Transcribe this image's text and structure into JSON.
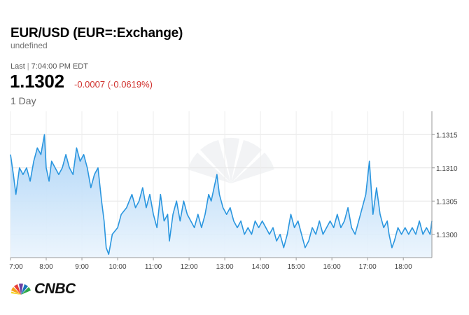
{
  "header": {
    "title": "EUR/USD (EUR=:Exchange)",
    "subtitle": "undefined",
    "last_label": "Last",
    "last_time": "7:04:00 PM EDT",
    "price": "1.1302",
    "change": "-0.0007 (-0.0619%)",
    "range": "1 Day"
  },
  "brand": {
    "name": "CNBC",
    "logo_icon": "cnbc-peacock-icon"
  },
  "colors": {
    "line": "#2a96df",
    "fill_top": "#a9d2f6",
    "fill_bottom": "#eaf4fd",
    "negative": "#d0312d"
  },
  "chart_data": {
    "type": "area",
    "x_tick_labels": [
      "7:00",
      "8:00",
      "9:00",
      "10:00",
      "11:00",
      "12:00",
      "13:00",
      "14:00",
      "15:00",
      "16:00",
      "17:00",
      "18:00"
    ],
    "x_range_hours": [
      7.0,
      18.8
    ],
    "ylim": [
      1.12965,
      1.13185
    ],
    "y_tick_labels": [
      "1.1315",
      "1.1310",
      "1.1305",
      "1.1300"
    ],
    "y_ticks": [
      1.1315,
      1.131,
      1.1305,
      1.13
    ],
    "grid": true,
    "y_axis_position": "right",
    "series": [
      {
        "points": [
          [
            7.0,
            1.1312
          ],
          [
            7.08,
            1.1309
          ],
          [
            7.15,
            1.1306
          ],
          [
            7.25,
            1.131
          ],
          [
            7.35,
            1.1309
          ],
          [
            7.45,
            1.131
          ],
          [
            7.55,
            1.1308
          ],
          [
            7.65,
            1.1311
          ],
          [
            7.75,
            1.1313
          ],
          [
            7.85,
            1.1312
          ],
          [
            7.95,
            1.1315
          ],
          [
            8.0,
            1.131
          ],
          [
            8.08,
            1.1308
          ],
          [
            8.15,
            1.1311
          ],
          [
            8.25,
            1.131
          ],
          [
            8.35,
            1.1309
          ],
          [
            8.45,
            1.131
          ],
          [
            8.55,
            1.1312
          ],
          [
            8.65,
            1.131
          ],
          [
            8.75,
            1.1309
          ],
          [
            8.85,
            1.1313
          ],
          [
            8.95,
            1.1311
          ],
          [
            9.05,
            1.1312
          ],
          [
            9.15,
            1.131
          ],
          [
            9.25,
            1.1307
          ],
          [
            9.35,
            1.1309
          ],
          [
            9.45,
            1.131
          ],
          [
            9.55,
            1.1305
          ],
          [
            9.62,
            1.1302
          ],
          [
            9.68,
            1.1298
          ],
          [
            9.75,
            1.1297
          ],
          [
            9.85,
            1.13
          ],
          [
            10.0,
            1.1301
          ],
          [
            10.1,
            1.1303
          ],
          [
            10.25,
            1.1304
          ],
          [
            10.4,
            1.1306
          ],
          [
            10.5,
            1.1304
          ],
          [
            10.6,
            1.1305
          ],
          [
            10.7,
            1.1307
          ],
          [
            10.8,
            1.1304
          ],
          [
            10.9,
            1.1306
          ],
          [
            11.0,
            1.1303
          ],
          [
            11.1,
            1.1301
          ],
          [
            11.2,
            1.1306
          ],
          [
            11.3,
            1.1302
          ],
          [
            11.4,
            1.1303
          ],
          [
            11.45,
            1.1299
          ],
          [
            11.55,
            1.1303
          ],
          [
            11.65,
            1.1305
          ],
          [
            11.75,
            1.1302
          ],
          [
            11.85,
            1.1305
          ],
          [
            11.95,
            1.1303
          ],
          [
            12.05,
            1.1302
          ],
          [
            12.15,
            1.1301
          ],
          [
            12.25,
            1.1303
          ],
          [
            12.35,
            1.1301
          ],
          [
            12.45,
            1.1303
          ],
          [
            12.55,
            1.1306
          ],
          [
            12.62,
            1.1305
          ],
          [
            12.7,
            1.1307
          ],
          [
            12.78,
            1.1309
          ],
          [
            12.85,
            1.1306
          ],
          [
            12.95,
            1.1304
          ],
          [
            13.05,
            1.1303
          ],
          [
            13.15,
            1.1304
          ],
          [
            13.25,
            1.1302
          ],
          [
            13.35,
            1.1301
          ],
          [
            13.45,
            1.1302
          ],
          [
            13.55,
            1.13
          ],
          [
            13.65,
            1.1301
          ],
          [
            13.75,
            1.13
          ],
          [
            13.85,
            1.1302
          ],
          [
            13.95,
            1.1301
          ],
          [
            14.05,
            1.1302
          ],
          [
            14.15,
            1.1301
          ],
          [
            14.25,
            1.13
          ],
          [
            14.35,
            1.1301
          ],
          [
            14.45,
            1.1299
          ],
          [
            14.55,
            1.13
          ],
          [
            14.65,
            1.1298
          ],
          [
            14.75,
            1.13
          ],
          [
            14.85,
            1.1303
          ],
          [
            14.95,
            1.1301
          ],
          [
            15.05,
            1.1302
          ],
          [
            15.15,
            1.13
          ],
          [
            15.25,
            1.1298
          ],
          [
            15.35,
            1.1299
          ],
          [
            15.45,
            1.1301
          ],
          [
            15.55,
            1.13
          ],
          [
            15.65,
            1.1302
          ],
          [
            15.75,
            1.13
          ],
          [
            15.85,
            1.1301
          ],
          [
            15.95,
            1.1302
          ],
          [
            16.05,
            1.1301
          ],
          [
            16.15,
            1.1303
          ],
          [
            16.25,
            1.1301
          ],
          [
            16.35,
            1.1302
          ],
          [
            16.45,
            1.1304
          ],
          [
            16.55,
            1.1301
          ],
          [
            16.65,
            1.13
          ],
          [
            16.75,
            1.1302
          ],
          [
            16.85,
            1.1304
          ],
          [
            16.95,
            1.1306
          ],
          [
            17.05,
            1.1311
          ],
          [
            17.15,
            1.1303
          ],
          [
            17.25,
            1.1307
          ],
          [
            17.35,
            1.1303
          ],
          [
            17.45,
            1.1301
          ],
          [
            17.55,
            1.1302
          ],
          [
            17.6,
            1.13
          ],
          [
            17.68,
            1.1298
          ],
          [
            17.75,
            1.1299
          ],
          [
            17.85,
            1.1301
          ],
          [
            17.95,
            1.13
          ],
          [
            18.05,
            1.1301
          ],
          [
            18.15,
            1.13
          ],
          [
            18.25,
            1.1301
          ],
          [
            18.35,
            1.13
          ],
          [
            18.45,
            1.1302
          ],
          [
            18.55,
            1.13
          ],
          [
            18.65,
            1.1301
          ],
          [
            18.75,
            1.13
          ],
          [
            18.8,
            1.1302
          ]
        ]
      }
    ]
  }
}
